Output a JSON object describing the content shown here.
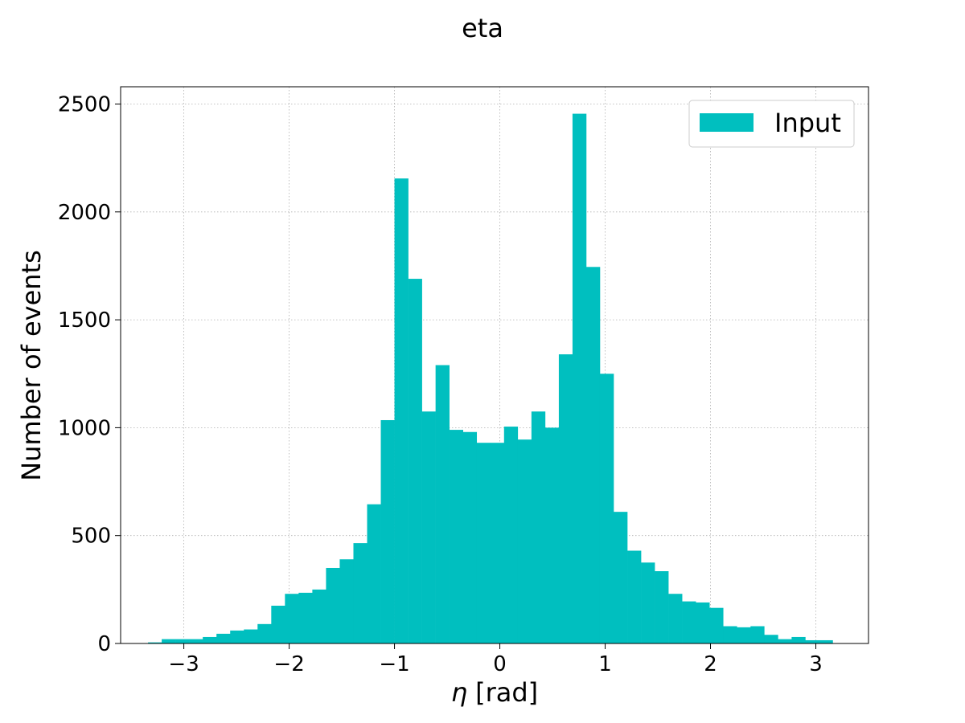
{
  "chart_data": {
    "type": "bar",
    "title": "eta",
    "xlabel_symbol": "η",
    "xlabel_unit": "[rad]",
    "ylabel": "Number of events",
    "xlim": [
      -3.6,
      3.5
    ],
    "ylim": [
      0,
      2580
    ],
    "bin_width": 0.13,
    "bin_edges_start": -3.34,
    "values": [
      5,
      20,
      20,
      20,
      30,
      45,
      60,
      65,
      90,
      175,
      230,
      235,
      250,
      350,
      390,
      465,
      645,
      1035,
      2155,
      1690,
      1075,
      1290,
      990,
      980,
      930,
      930,
      1005,
      945,
      1075,
      1000,
      1340,
      2455,
      1745,
      1250,
      610,
      430,
      375,
      335,
      230,
      195,
      190,
      165,
      80,
      75,
      80,
      40,
      20,
      30,
      15,
      15
    ],
    "x_ticks": [
      -3,
      -2,
      -1,
      0,
      1,
      2,
      3
    ],
    "x_tick_labels": [
      "−3",
      "−2",
      "−1",
      "0",
      "1",
      "2",
      "3"
    ],
    "y_ticks": [
      0,
      500,
      1000,
      1500,
      2000,
      2500
    ],
    "y_tick_labels": [
      "0",
      "500",
      "1000",
      "1500",
      "2000",
      "2500"
    ],
    "grid": true,
    "legend": {
      "entries": [
        {
          "label": "Input",
          "color": "#00bfbf"
        }
      ],
      "placement": "top-right"
    },
    "series_color": "#00bfbf"
  }
}
